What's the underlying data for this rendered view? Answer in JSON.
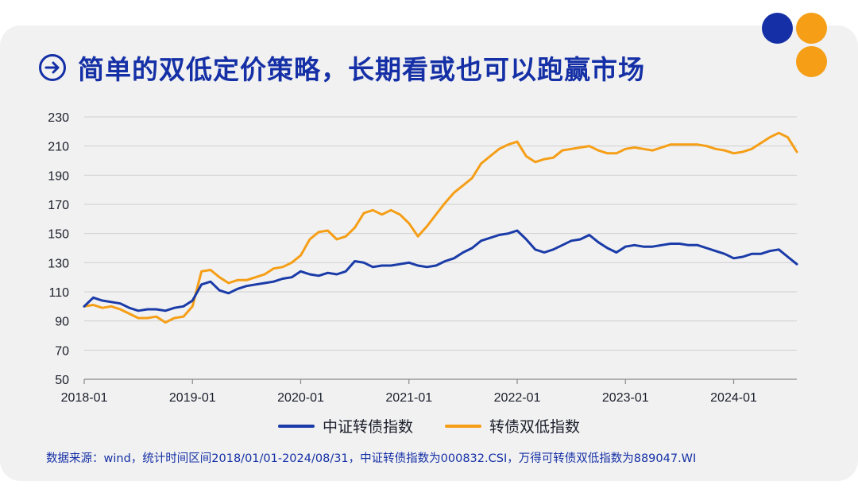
{
  "title": "简单的双低定价策略，长期看或也可以跑赢市场",
  "footnote": "数据来源：wind，统计时间区间2018/01/01-2024/08/31，中证转债指数为000832.CSI，万得可转债双低指数为889047.WI",
  "colors": {
    "title": "#1530a6",
    "navy": "#1a3ba8",
    "orange": "#f59e16",
    "background": "#f1f1f1",
    "grid": "#cfcfcf",
    "axis_text": "#1b1f2b"
  },
  "icons": {
    "title_icon": "arrow-right-circle-icon"
  },
  "chart_data": {
    "type": "line",
    "title": "",
    "xlabel": "",
    "ylabel": "",
    "ylim": [
      50,
      230
    ],
    "yticks": [
      "230",
      "210",
      "190",
      "170",
      "150",
      "130",
      "110",
      "90",
      "70",
      "50"
    ],
    "xticks": [
      "2018-01",
      "2019-01",
      "2020-01",
      "2021-01",
      "2022-01",
      "2023-01",
      "2024-01"
    ],
    "grid": true,
    "legend_position": "bottom",
    "x": [
      "2018-01",
      "2018-02",
      "2018-03",
      "2018-04",
      "2018-05",
      "2018-06",
      "2018-07",
      "2018-08",
      "2018-09",
      "2018-10",
      "2018-11",
      "2018-12",
      "2019-01",
      "2019-02",
      "2019-03",
      "2019-04",
      "2019-05",
      "2019-06",
      "2019-07",
      "2019-08",
      "2019-09",
      "2019-10",
      "2019-11",
      "2019-12",
      "2020-01",
      "2020-02",
      "2020-03",
      "2020-04",
      "2020-05",
      "2020-06",
      "2020-07",
      "2020-08",
      "2020-09",
      "2020-10",
      "2020-11",
      "2020-12",
      "2021-01",
      "2021-02",
      "2021-03",
      "2021-04",
      "2021-05",
      "2021-06",
      "2021-07",
      "2021-08",
      "2021-09",
      "2021-10",
      "2021-11",
      "2021-12",
      "2022-01",
      "2022-02",
      "2022-03",
      "2022-04",
      "2022-05",
      "2022-06",
      "2022-07",
      "2022-08",
      "2022-09",
      "2022-10",
      "2022-11",
      "2022-12",
      "2023-01",
      "2023-02",
      "2023-03",
      "2023-04",
      "2023-05",
      "2023-06",
      "2023-07",
      "2023-08",
      "2023-09",
      "2023-10",
      "2023-11",
      "2023-12",
      "2024-01",
      "2024-02",
      "2024-03",
      "2024-04",
      "2024-05",
      "2024-06",
      "2024-07",
      "2024-08"
    ],
    "series": [
      {
        "name": "中证转债指数",
        "color": "#1a3ba8",
        "values": [
          100,
          106,
          104,
          103,
          102,
          99,
          97,
          98,
          98,
          97,
          99,
          100,
          104,
          115,
          117,
          111,
          109,
          112,
          114,
          115,
          116,
          117,
          119,
          120,
          124,
          122,
          121,
          123,
          122,
          124,
          131,
          130,
          127,
          128,
          128,
          129,
          130,
          128,
          127,
          128,
          131,
          133,
          137,
          140,
          145,
          147,
          149,
          150,
          152,
          146,
          139,
          137,
          139,
          142,
          145,
          146,
          149,
          144,
          140,
          137,
          141,
          142,
          141,
          141,
          142,
          143,
          143,
          142,
          142,
          140,
          138,
          136,
          133,
          134,
          136,
          136,
          138,
          139,
          134,
          129
        ]
      },
      {
        "name": "转债双低指数",
        "color": "#f59e16",
        "values": [
          100,
          101,
          99,
          100,
          98,
          95,
          92,
          92,
          93,
          89,
          92,
          93,
          100,
          124,
          125,
          120,
          116,
          118,
          118,
          120,
          122,
          126,
          127,
          130,
          135,
          146,
          151,
          152,
          146,
          148,
          154,
          164,
          166,
          163,
          166,
          163,
          157,
          148,
          155,
          163,
          171,
          178,
          183,
          188,
          198,
          203,
          208,
          211,
          213,
          203,
          199,
          201,
          202,
          207,
          208,
          209,
          210,
          207,
          205,
          205,
          208,
          209,
          208,
          207,
          209,
          211,
          211,
          211,
          211,
          210,
          208,
          207,
          205,
          206,
          208,
          212,
          216,
          219,
          216,
          206
        ]
      }
    ]
  }
}
